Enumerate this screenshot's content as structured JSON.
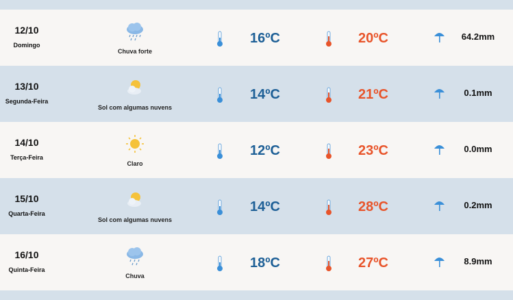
{
  "colors": {
    "min_temp": "#1d5f96",
    "max_temp": "#e8542a",
    "row_light": "#f8f6f4",
    "row_dark": "#d5e0ea"
  },
  "days": [
    {
      "date": "12/10",
      "weekday": "Domingo",
      "icon": "heavy-rain-icon",
      "condition": "Chuva forte",
      "min": "16ºC",
      "max": "20ºC",
      "rain": "64.2mm"
    },
    {
      "date": "13/10",
      "weekday": "Segunda-Feira",
      "icon": "partly-cloudy-icon",
      "condition": "Sol com algumas nuvens",
      "min": "14ºC",
      "max": "21ºC",
      "rain": "0.1mm"
    },
    {
      "date": "14/10",
      "weekday": "Terça-Feira",
      "icon": "sun-icon",
      "condition": "Claro",
      "min": "12ºC",
      "max": "23ºC",
      "rain": "0.0mm"
    },
    {
      "date": "15/10",
      "weekday": "Quarta-Feira",
      "icon": "partly-cloudy-icon",
      "condition": "Sol com algumas nuvens",
      "min": "14ºC",
      "max": "28ºC",
      "rain": "0.2mm"
    },
    {
      "date": "16/10",
      "weekday": "Quinta-Feira",
      "icon": "rain-icon",
      "condition": "Chuva",
      "min": "18ºC",
      "max": "27ºC",
      "rain": "8.9mm"
    }
  ]
}
